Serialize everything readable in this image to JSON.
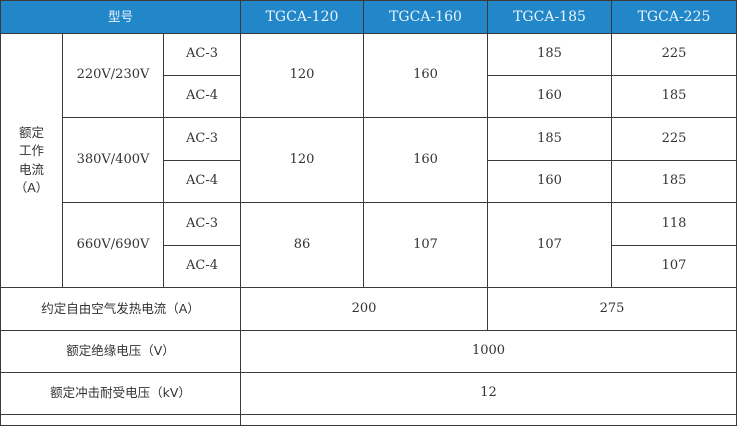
{
  "header": {
    "model_label": "型号",
    "models": [
      "TGCA-120",
      "TGCA-160",
      "TGCA-185",
      "TGCA-225"
    ]
  },
  "rated_current": {
    "label": "额定\n工作\n电流\n（A）",
    "voltages": [
      "220V/230V",
      "380V/400V",
      "660V/690V"
    ],
    "categories": [
      "AC-3",
      "AC-4",
      "AC-3",
      "AC-4",
      "AC-3",
      "AC-4"
    ],
    "tgca120": [
      "120",
      "120",
      "86"
    ],
    "tgca160": [
      "160",
      "160",
      "107"
    ],
    "tgca185": [
      "185",
      "160",
      "185",
      "160",
      "107"
    ],
    "tgca225": [
      "225",
      "185",
      "225",
      "185",
      "118",
      "107"
    ]
  },
  "thermal_current": {
    "label": "约定自由空气发热电流（A）",
    "values": [
      "200",
      "275"
    ]
  },
  "insulation_voltage": {
    "label": "额定绝缘电压（V）",
    "value": "1000"
  },
  "impulse_voltage": {
    "label": "额定冲击耐受电压（kV）",
    "value": "12"
  }
}
